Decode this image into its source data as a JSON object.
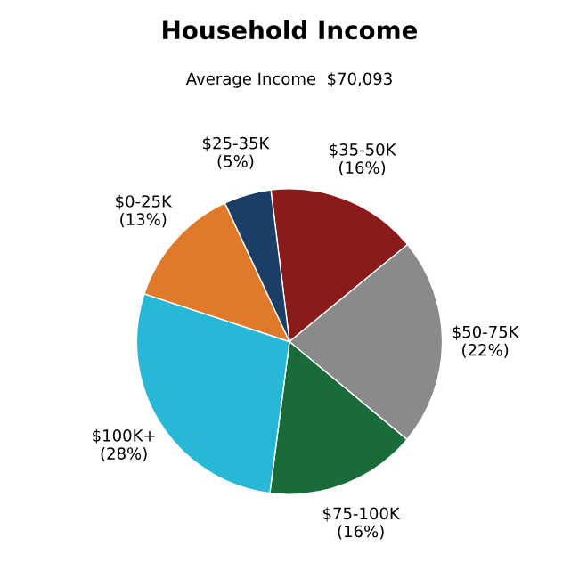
{
  "chart_data": {
    "type": "pie",
    "title": "Household Income",
    "subtitle": "Average Income  $70,093",
    "categories": [
      "$35-50K",
      "$50-75K",
      "$75-100K",
      "$100K+",
      "$0-25K",
      "$25-35K"
    ],
    "values": [
      16,
      22,
      16,
      28,
      13,
      5
    ],
    "value_labels": [
      "(16%)",
      "(22%)",
      "(16%)",
      "(28%)",
      "(13%)",
      "(5%)"
    ],
    "colors": [
      "#8b1a1a",
      "#8a8a8a",
      "#1a6b3a",
      "#27b8d8",
      "#e07a2a",
      "#1a3e66"
    ]
  }
}
